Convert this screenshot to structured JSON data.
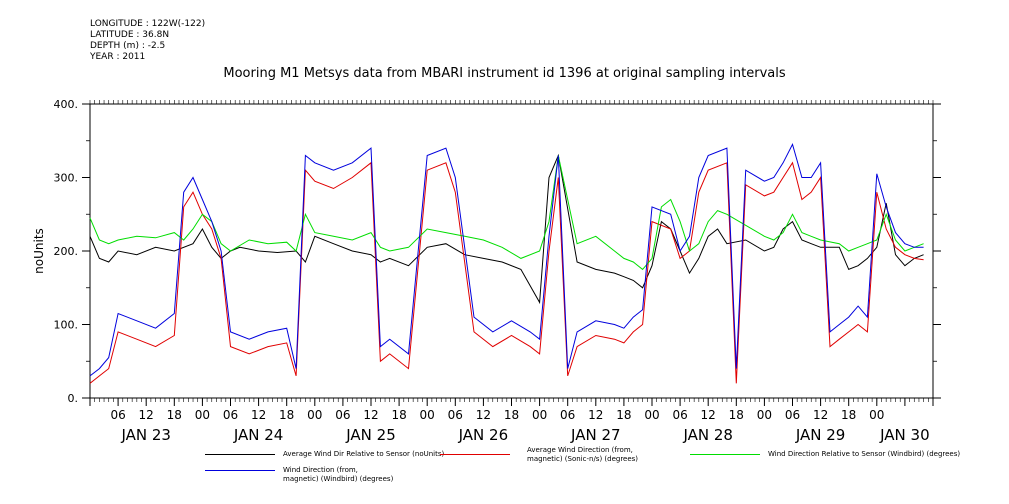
{
  "meta": {
    "longitude": "LONGITUDE : 122W(-122)",
    "latitude": "LATITUDE : 36.8N",
    "depth": "DEPTH (m) : -2.5",
    "year": "YEAR : 2011"
  },
  "title": "Mooring M1 Metsys data from MBARI instrument id 1396 at original sampling intervals",
  "chart_data": {
    "type": "line",
    "title": "Mooring M1 Metsys data from MBARI instrument id 1396 at original sampling intervals",
    "ylabel": "noUnits",
    "xlabel": "",
    "ylim": [
      0,
      400
    ],
    "yticks": [
      "0.",
      "100.",
      "200.",
      "300.",
      "400."
    ],
    "xlim_hours": [
      0,
      180
    ],
    "x_units": "hours from JAN 23 00:00",
    "xticks_hour_labels": [
      {
        "h": 6,
        "t": "06"
      },
      {
        "h": 12,
        "t": "12"
      },
      {
        "h": 18,
        "t": "18"
      },
      {
        "h": 24,
        "t": "00"
      },
      {
        "h": 30,
        "t": "06"
      },
      {
        "h": 36,
        "t": "12"
      },
      {
        "h": 42,
        "t": "18"
      },
      {
        "h": 48,
        "t": "00"
      },
      {
        "h": 54,
        "t": "06"
      },
      {
        "h": 60,
        "t": "12"
      },
      {
        "h": 66,
        "t": "18"
      },
      {
        "h": 72,
        "t": "00"
      },
      {
        "h": 78,
        "t": "06"
      },
      {
        "h": 84,
        "t": "12"
      },
      {
        "h": 90,
        "t": "18"
      },
      {
        "h": 96,
        "t": "00"
      },
      {
        "h": 102,
        "t": "06"
      },
      {
        "h": 108,
        "t": "12"
      },
      {
        "h": 114,
        "t": "18"
      },
      {
        "h": 120,
        "t": "00"
      },
      {
        "h": 126,
        "t": "06"
      },
      {
        "h": 132,
        "t": "12"
      },
      {
        "h": 138,
        "t": "18"
      },
      {
        "h": 144,
        "t": "00"
      },
      {
        "h": 150,
        "t": "06"
      },
      {
        "h": 156,
        "t": "12"
      },
      {
        "h": 162,
        "t": "18"
      },
      {
        "h": 168,
        "t": "00"
      }
    ],
    "day_labels": [
      {
        "h": 12,
        "t": "JAN 23"
      },
      {
        "h": 36,
        "t": "JAN 24"
      },
      {
        "h": 60,
        "t": "JAN 25"
      },
      {
        "h": 84,
        "t": "JAN 26"
      },
      {
        "h": 108,
        "t": "JAN 27"
      },
      {
        "h": 132,
        "t": "JAN 28"
      },
      {
        "h": 156,
        "t": "JAN 29"
      },
      {
        "h": 174,
        "t": "JAN 30"
      }
    ],
    "series": [
      {
        "name": "Average Wind Dir Relative to Sensor (noUnits)",
        "color": "#000000",
        "x": [
          0,
          2,
          4,
          6,
          10,
          14,
          18,
          22,
          24,
          26,
          28,
          30,
          32,
          36,
          40,
          44,
          46,
          48,
          52,
          56,
          60,
          62,
          64,
          68,
          72,
          76,
          80,
          84,
          88,
          92,
          96,
          98,
          100,
          104,
          108,
          112,
          114,
          116,
          118,
          120,
          122,
          124,
          126,
          128,
          130,
          132,
          134,
          136,
          140,
          144,
          146,
          148,
          150,
          152,
          154,
          156,
          160,
          162,
          164,
          166,
          168,
          170,
          172,
          174,
          176,
          178
        ],
        "y": [
          220,
          190,
          185,
          200,
          195,
          205,
          200,
          210,
          230,
          205,
          190,
          200,
          205,
          200,
          198,
          200,
          185,
          220,
          210,
          200,
          195,
          185,
          190,
          180,
          205,
          210,
          195,
          190,
          185,
          175,
          130,
          300,
          330,
          185,
          175,
          170,
          165,
          160,
          150,
          180,
          240,
          230,
          200,
          170,
          190,
          220,
          230,
          210,
          215,
          200,
          205,
          230,
          240,
          215,
          210,
          205,
          205,
          175,
          180,
          190,
          205,
          265,
          195,
          180,
          190,
          195
        ]
      },
      {
        "name": "Average Wind Direction (from, magnetic) (Sonic-n/s) (degrees)",
        "color": "#e00000",
        "x": [
          0,
          2,
          4,
          6,
          10,
          14,
          18,
          20,
          22,
          24,
          26,
          28,
          30,
          34,
          38,
          42,
          44,
          46,
          48,
          52,
          56,
          60,
          62,
          64,
          68,
          72,
          76,
          78,
          82,
          86,
          90,
          94,
          96,
          98,
          100,
          102,
          104,
          108,
          112,
          114,
          116,
          118,
          120,
          124,
          126,
          128,
          130,
          132,
          136,
          138,
          140,
          144,
          146,
          148,
          150,
          152,
          154,
          156,
          158,
          160,
          162,
          164,
          166,
          168,
          170,
          172,
          174,
          176,
          178
        ],
        "y": [
          20,
          30,
          40,
          90,
          80,
          70,
          85,
          260,
          280,
          250,
          230,
          190,
          70,
          60,
          70,
          75,
          30,
          310,
          295,
          285,
          300,
          320,
          50,
          60,
          40,
          310,
          320,
          280,
          90,
          70,
          85,
          70,
          60,
          200,
          300,
          30,
          70,
          85,
          80,
          75,
          90,
          100,
          240,
          230,
          190,
          200,
          280,
          310,
          320,
          20,
          290,
          275,
          280,
          300,
          320,
          270,
          280,
          300,
          70,
          80,
          90,
          100,
          90,
          280,
          230,
          205,
          195,
          190,
          188
        ]
      },
      {
        "name": "Wind Direction Relative to Sensor (Windbird) (degrees)",
        "color": "#00dd00",
        "x": [
          0,
          2,
          4,
          6,
          10,
          14,
          18,
          20,
          22,
          24,
          26,
          28,
          30,
          34,
          38,
          42,
          44,
          46,
          48,
          52,
          56,
          60,
          62,
          64,
          68,
          72,
          76,
          80,
          84,
          88,
          92,
          96,
          98,
          100,
          104,
          108,
          112,
          114,
          116,
          118,
          120,
          122,
          124,
          126,
          128,
          130,
          132,
          134,
          136,
          140,
          144,
          146,
          148,
          150,
          152,
          154,
          156,
          160,
          162,
          164,
          166,
          168,
          170,
          172,
          174,
          176,
          178
        ],
        "y": [
          245,
          215,
          210,
          215,
          220,
          218,
          225,
          215,
          230,
          250,
          240,
          210,
          200,
          215,
          210,
          212,
          200,
          250,
          225,
          220,
          215,
          225,
          205,
          200,
          205,
          230,
          225,
          220,
          215,
          205,
          190,
          200,
          240,
          330,
          210,
          220,
          200,
          190,
          185,
          175,
          190,
          260,
          270,
          240,
          200,
          210,
          240,
          255,
          250,
          235,
          220,
          215,
          225,
          250,
          225,
          220,
          215,
          210,
          200,
          205,
          210,
          215,
          250,
          215,
          200,
          205,
          210
        ]
      },
      {
        "name": "Wind Direction (from, magnetic) (Windbird) (degrees)",
        "color": "#0000dd",
        "x": [
          0,
          2,
          4,
          6,
          10,
          14,
          18,
          20,
          22,
          24,
          26,
          28,
          30,
          34,
          38,
          42,
          44,
          46,
          48,
          52,
          56,
          60,
          62,
          64,
          68,
          72,
          76,
          78,
          82,
          86,
          90,
          94,
          96,
          98,
          100,
          102,
          104,
          108,
          112,
          114,
          116,
          118,
          120,
          124,
          126,
          128,
          130,
          132,
          136,
          138,
          140,
          144,
          146,
          148,
          150,
          152,
          154,
          156,
          158,
          160,
          162,
          164,
          166,
          168,
          170,
          172,
          174,
          176,
          178
        ],
        "y": [
          30,
          40,
          55,
          115,
          105,
          95,
          115,
          280,
          300,
          270,
          240,
          200,
          90,
          80,
          90,
          95,
          40,
          330,
          320,
          310,
          320,
          340,
          70,
          80,
          60,
          330,
          340,
          300,
          110,
          90,
          105,
          90,
          80,
          220,
          330,
          40,
          90,
          105,
          100,
          95,
          110,
          120,
          260,
          250,
          200,
          220,
          300,
          330,
          340,
          40,
          310,
          295,
          300,
          320,
          345,
          300,
          300,
          320,
          90,
          100,
          110,
          125,
          110,
          305,
          260,
          225,
          210,
          205,
          205
        ]
      }
    ],
    "legend": [
      {
        "label": "Average Wind Dir Relative to Sensor (noUnits)",
        "color": "#000000"
      },
      {
        "label": "Average Wind Direction (from,\nmagnetic) (Sonic-n/s) (degrees)",
        "color": "#e00000"
      },
      {
        "label": "Wind Direction Relative to Sensor (Windbird) (degrees)",
        "color": "#00dd00"
      },
      {
        "label": "Wind Direction (from,\nmagnetic) (Windbird) (degrees)",
        "color": "#0000dd"
      }
    ]
  }
}
